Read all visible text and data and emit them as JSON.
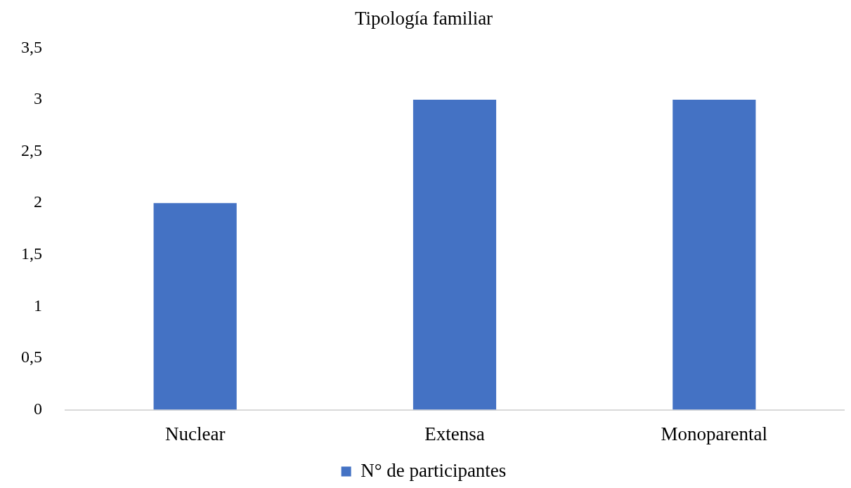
{
  "chart_data": {
    "type": "bar",
    "title": "Tipología familiar",
    "categories": [
      "Nuclear",
      "Extensa",
      "Monoparental"
    ],
    "series": [
      {
        "name": "N° de participantes",
        "color": "#4472c4",
        "values": [
          2,
          3,
          3
        ]
      }
    ],
    "ylim": [
      0,
      3.5
    ],
    "yticks": [
      0,
      {
        "value": 0.5,
        "label": "0,5"
      },
      1,
      {
        "value": 1.5,
        "label": "1,5"
      },
      2,
      {
        "value": 2.5,
        "label": "2,5"
      },
      3,
      {
        "value": 3.5,
        "label": "3,5"
      }
    ],
    "legend": "bottom"
  }
}
